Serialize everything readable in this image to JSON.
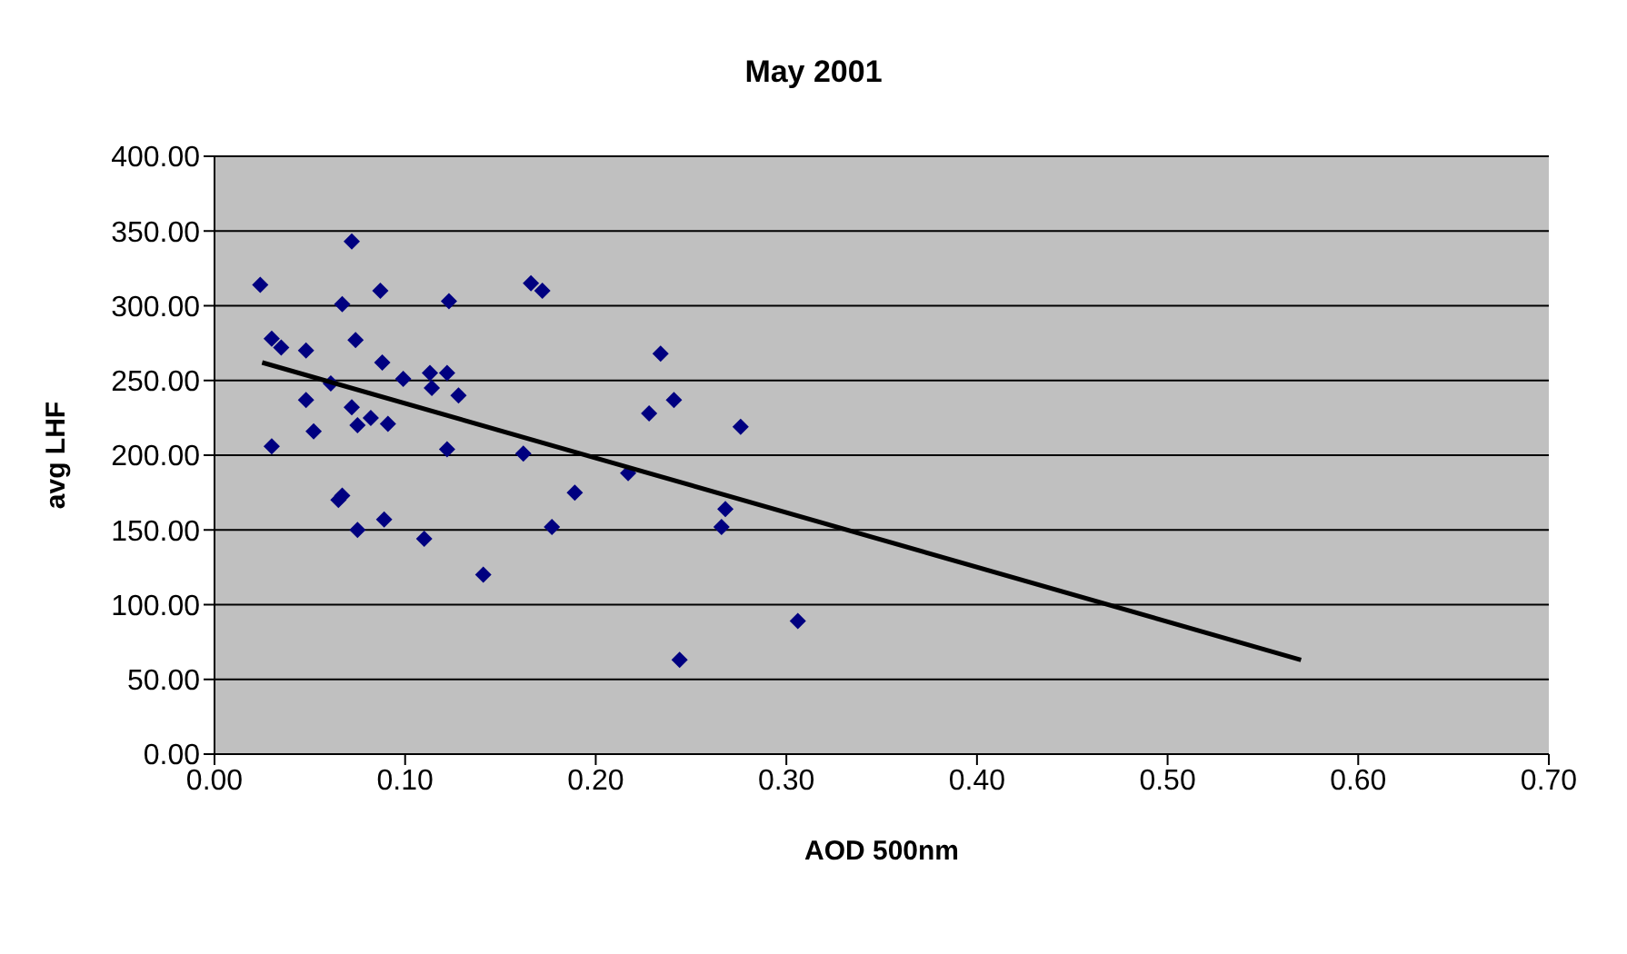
{
  "chart_data": {
    "type": "scatter",
    "title": "May 2001",
    "xlabel": "AOD 500nm",
    "ylabel": "avg LHF",
    "xlim": [
      0,
      0.7
    ],
    "xticks": [
      {
        "value": 0,
        "label": "0.00"
      },
      {
        "value": 0.1,
        "label": "0.10"
      },
      {
        "value": 0.2,
        "label": "0.20"
      },
      {
        "value": 0.3,
        "label": "0.30"
      },
      {
        "value": 0.4,
        "label": "0.40"
      },
      {
        "value": 0.5,
        "label": "0.50"
      },
      {
        "value": 0.6,
        "label": "0.60"
      },
      {
        "value": 0.7,
        "label": "0.70"
      }
    ],
    "ylim": [
      0,
      400
    ],
    "yticks": [
      {
        "value": 0,
        "label": "0.00"
      },
      {
        "value": 50,
        "label": "50.00"
      },
      {
        "value": 100,
        "label": "100.00"
      },
      {
        "value": 150,
        "label": "150.00"
      },
      {
        "value": 200,
        "label": "200.00"
      },
      {
        "value": 250,
        "label": "250.00"
      },
      {
        "value": 300,
        "label": "300.00"
      },
      {
        "value": 350,
        "label": "350.00"
      },
      {
        "value": 400,
        "label": "400.00"
      }
    ],
    "grid": "y",
    "legend": false,
    "series": [
      {
        "marker": "diamond",
        "color": "#000080",
        "x": [
          0.024,
          0.072,
          0.067,
          0.087,
          0.123,
          0.166,
          0.172,
          0.03,
          0.035,
          0.048,
          0.074,
          0.088,
          0.061,
          0.099,
          0.113,
          0.122,
          0.114,
          0.128,
          0.048,
          0.072,
          0.082,
          0.075,
          0.091,
          0.052,
          0.03,
          0.122,
          0.162,
          0.234,
          0.241,
          0.228,
          0.276,
          0.217,
          0.189,
          0.268,
          0.266,
          0.177,
          0.067,
          0.065,
          0.089,
          0.075,
          0.11,
          0.141,
          0.306,
          0.244
        ],
        "values": [
          314,
          343,
          301,
          310,
          303,
          315,
          310,
          278,
          272,
          270,
          277,
          262,
          248,
          251,
          255,
          255,
          245,
          240,
          237,
          232,
          225,
          220,
          221,
          216,
          206,
          204,
          201,
          268,
          237,
          228,
          219,
          188,
          175,
          164,
          152,
          152,
          173,
          170,
          157,
          150,
          144,
          120,
          89,
          63
        ]
      },
      {
        "type": "line",
        "marker": "none",
        "color": "#000000",
        "x": [
          0.025,
          0.57
        ],
        "values": [
          262,
          63
        ]
      }
    ]
  }
}
